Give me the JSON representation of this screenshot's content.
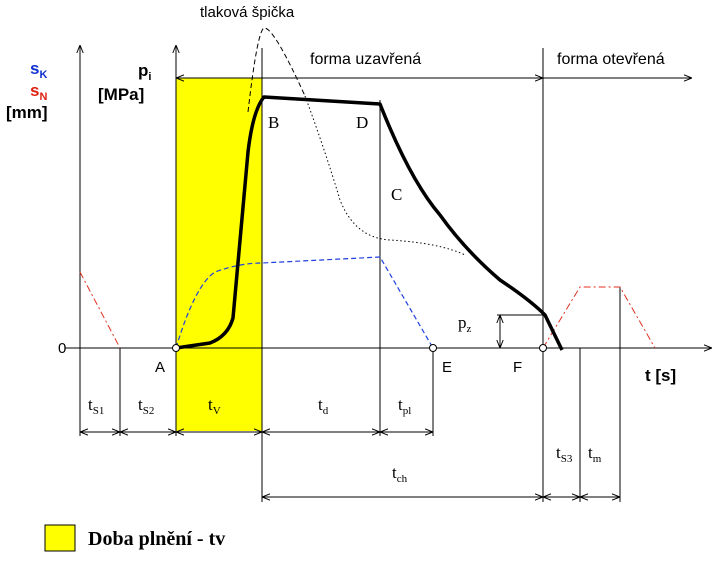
{
  "diagram": {
    "peak_label": "tlaková špička",
    "mold_closed": "forma uzavřená",
    "mold_open": "forma otevřená",
    "axis_left": {
      "sK": {
        "main": "s",
        "sub": "K"
      },
      "sN": {
        "main": "s",
        "sub": "N"
      },
      "unit": "[mm]"
    },
    "axis_pressure": {
      "pi": {
        "main": "p",
        "sub": "i"
      },
      "unit": "[MPa]"
    },
    "zero": "0",
    "points": [
      "A",
      "B",
      "C",
      "D",
      "E",
      "F"
    ],
    "pz": {
      "main": "p",
      "sub": "z"
    },
    "time_axis": "t [s]",
    "intervals": [
      {
        "main": "t",
        "sub": "S1"
      },
      {
        "main": "t",
        "sub": "S2"
      },
      {
        "main": "t",
        "sub": "V"
      },
      {
        "main": "t",
        "sub": "d"
      },
      {
        "main": "t",
        "sub": "pl"
      },
      {
        "main": "t",
        "sub": "ch"
      },
      {
        "main": "t",
        "sub": "S3"
      },
      {
        "main": "t",
        "sub": "m"
      }
    ],
    "legend": "Doba plnění - tv"
  }
}
